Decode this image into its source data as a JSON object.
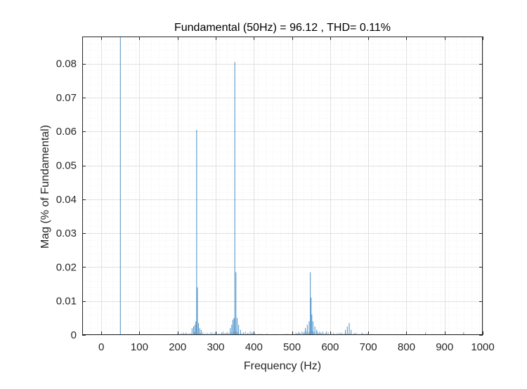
{
  "chart_data": {
    "type": "bar",
    "title": "Fundamental (50Hz) = 96.12 , THD= 0.11%",
    "xlabel": "Frequency (Hz)",
    "ylabel": "Mag (% of Fundamental)",
    "xlim": [
      -50,
      1000
    ],
    "ylim": [
      0,
      0.088
    ],
    "xticks": [
      0,
      100,
      200,
      300,
      400,
      500,
      600,
      700,
      800,
      900,
      1000
    ],
    "xtick_labels": [
      "0",
      "100",
      "200",
      "300",
      "400",
      "500",
      "600",
      "700",
      "800",
      "900",
      "1000"
    ],
    "yticks": [
      0,
      0.01,
      0.02,
      0.03,
      0.04,
      0.05,
      0.06,
      0.07,
      0.08
    ],
    "ytick_labels": [
      "0",
      "0.01",
      "0.02",
      "0.03",
      "0.04",
      "0.05",
      "0.06",
      "0.07",
      "0.08"
    ],
    "grid": true,
    "minor_grid": true,
    "bar_color": "#4a90c8",
    "x": [
      50,
      238,
      242,
      245,
      248,
      250,
      252,
      255,
      258,
      262,
      338,
      342,
      345,
      348,
      350,
      353,
      356,
      360,
      365,
      535,
      540,
      545,
      548,
      550,
      552,
      555,
      560,
      565,
      640,
      645,
      650,
      655,
      850,
      950
    ],
    "values": [
      0.088,
      0.002,
      0.0025,
      0.003,
      0.004,
      0.0605,
      0.014,
      0.0035,
      0.002,
      0.0015,
      0.002,
      0.003,
      0.0045,
      0.005,
      0.0805,
      0.0185,
      0.005,
      0.003,
      0.0015,
      0.002,
      0.003,
      0.004,
      0.0185,
      0.011,
      0.006,
      0.004,
      0.0025,
      0.0015,
      0.0015,
      0.0025,
      0.0035,
      0.0015,
      0.0007,
      0.0008
    ]
  }
}
